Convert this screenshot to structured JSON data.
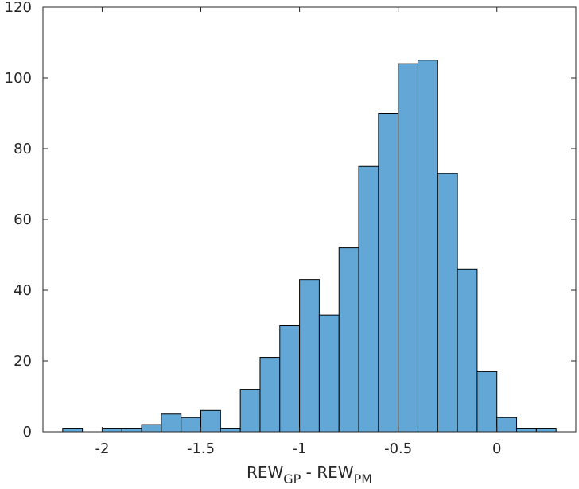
{
  "chart_data": {
    "type": "bar",
    "subtype": "histogram",
    "bin_width": 0.1,
    "bin_edges": [
      -2.2,
      -2.1,
      -2.0,
      -1.9,
      -1.8,
      -1.7,
      -1.6,
      -1.5,
      -1.4,
      -1.3,
      -1.2,
      -1.1,
      -1.0,
      -0.9,
      -0.8,
      -0.7,
      -0.6,
      -0.5,
      -0.4,
      -0.3,
      -0.2,
      -0.1,
      0.0,
      0.1,
      0.2,
      0.3
    ],
    "values": [
      1,
      0,
      1,
      1,
      2,
      5,
      4,
      6,
      1,
      12,
      21,
      30,
      43,
      33,
      52,
      75,
      90,
      104,
      105,
      73,
      46,
      17,
      4,
      1,
      1
    ],
    "xlim": [
      -2.3,
      0.4
    ],
    "ylim": [
      0,
      120
    ],
    "xticks": [
      -2,
      -1.5,
      -1,
      -0.5,
      0
    ],
    "xtick_labels": [
      "-2",
      "-1.5",
      "-1",
      "-0.5",
      "0"
    ],
    "yticks": [
      0,
      20,
      40,
      60,
      80,
      100,
      120
    ],
    "ytick_labels": [
      "0",
      "20",
      "40",
      "60",
      "80",
      "100",
      "120"
    ],
    "xlabel": {
      "main1": "REW",
      "sub1": "GP",
      "mid": " - REW",
      "sub2": "PM"
    },
    "ylabel": "",
    "title": "",
    "grid": false,
    "bar_color": "#63A7D6",
    "edge_color": "#000000"
  }
}
